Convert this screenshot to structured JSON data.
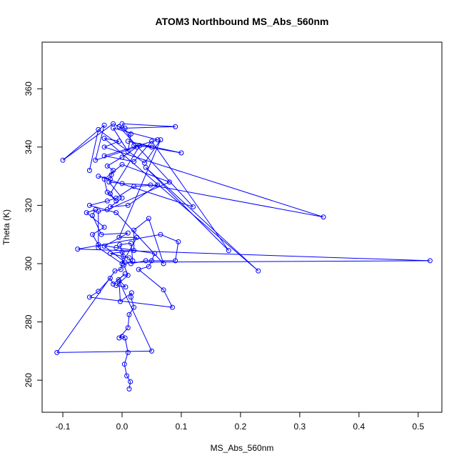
{
  "chart_data": {
    "type": "line",
    "title": "ATOM3 Northbound MS_Abs_560nm",
    "xlabel": "MS_Abs_560nm",
    "ylabel": "Theta (K)",
    "xlim": [
      -0.135,
      0.54
    ],
    "ylim": [
      249,
      376
    ],
    "grid": false,
    "legend": "none",
    "line_style": "lines with open-circle markers",
    "series_color": "#0000ff",
    "x_ticks": [
      -0.1,
      0.0,
      0.1,
      0.2,
      0.3,
      0.4,
      0.5
    ],
    "x_tick_labels": [
      "-0.1",
      "0.0",
      "0.1",
      "0.2",
      "0.3",
      "0.4",
      "0.5"
    ],
    "y_ticks": [
      260,
      280,
      300,
      320,
      340,
      360
    ],
    "y_tick_labels": [
      "260",
      "280",
      "300",
      "320",
      "340",
      "360"
    ],
    "series": [
      {
        "x": [
          0.012,
          0.014,
          0.008,
          0.004,
          0.01,
          0.005,
          0.0,
          -0.005,
          0.01,
          0.012,
          0.02,
          0.015,
          0.016,
          -0.003,
          -0.005,
          0.05,
          -0.11,
          -0.012,
          -0.002,
          0.002,
          0.0,
          -0.004,
          0.015,
          0.018,
          0.003,
          0.01,
          -0.01,
          0.006,
          -0.006,
          0.005,
          -0.015,
          -0.02,
          -0.04,
          -0.055,
          0.085,
          0.07,
          0.028,
          0.045,
          0.05,
          0.055,
          -0.01,
          -0.04,
          -0.05,
          -0.03,
          -0.06,
          -0.045,
          -0.05,
          -0.035,
          0.01,
          -0.03,
          0.005,
          0.52,
          -0.075,
          0.065,
          0.095,
          0.09,
          0.04,
          0.015,
          0.012,
          -0.02,
          0.02,
          0.02,
          0.045,
          0.07,
          -0.01,
          -0.055,
          -0.025,
          -0.01,
          0.02,
          0.06,
          0.01,
          -0.02,
          0.0,
          -0.022,
          0.0,
          0.048,
          0.34,
          -0.03,
          -0.005,
          -0.03,
          0.23,
          0.04,
          0.18,
          0.05,
          0.02,
          -0.03,
          0.06,
          -0.015,
          0.01,
          0.015,
          -0.005,
          0.12,
          -0.04,
          -0.02,
          -0.018,
          -0.015,
          -0.025,
          0.0,
          0.025,
          -0.045,
          -0.03,
          -0.1,
          -0.015,
          -0.005,
          0.005,
          0.09,
          0.0,
          0.02,
          0.05,
          0.01,
          0.1,
          0.03,
          -0.02,
          -0.01,
          -0.025,
          -0.03,
          0.0,
          0.08,
          -0.025,
          -0.04,
          -0.04,
          0.0,
          0.025,
          -0.005,
          0.065,
          0.038,
          -0.04,
          -0.055
        ],
        "y": [
          257,
          259.5,
          261.5,
          265.5,
          269.5,
          274.5,
          275,
          274.5,
          278,
          282.5,
          285,
          288.5,
          290,
          287,
          294,
          270,
          269.5,
          297.5,
          298,
          302.5,
          304,
          306.5,
          307,
          301,
          299.5,
          296,
          292.5,
          292,
          294.5,
          296.5,
          293,
          295,
          290.5,
          288.5,
          285,
          291,
          298,
          299,
          301,
          303.5,
          305.5,
          306.5,
          310,
          312.5,
          317.5,
          318.5,
          316.5,
          310,
          310.5,
          306,
          300.5,
          301,
          305,
          310,
          307.5,
          301,
          301,
          300,
          302,
          303.5,
          304.5,
          311.5,
          315.5,
          300,
          317.5,
          320,
          321.5,
          322.5,
          326.5,
          327,
          320,
          319.5,
          322.5,
          328,
          327.5,
          327,
          316,
          340,
          342,
          343,
          297.5,
          333,
          304.5,
          342,
          335,
          337,
          342.5,
          346.5,
          338.5,
          344.5,
          347,
          319.5,
          330,
          329,
          330.5,
          332,
          333.5,
          336.5,
          340,
          335.5,
          347.5,
          335.5,
          348,
          347,
          346.5,
          347,
          348,
          340.5,
          340,
          342,
          338,
          340.5,
          324,
          321.5,
          324.5,
          329,
          334,
          328,
          318.5,
          318,
          305.5,
          300,
          309,
          309,
          342.5,
          334.5,
          346,
          332
        ]
      }
    ]
  }
}
